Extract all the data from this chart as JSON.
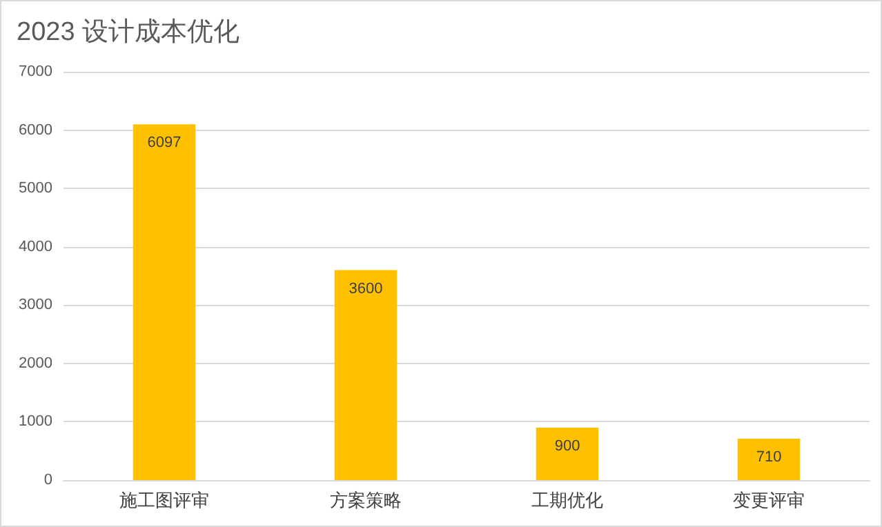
{
  "chart_data": {
    "type": "bar",
    "title": "2023 设计成本优化",
    "categories": [
      "施工图评审",
      "方案策略",
      "工期优化",
      "变更评审"
    ],
    "values": [
      6097,
      3600,
      900,
      710
    ],
    "color": "#ffc000",
    "ylim": [
      0,
      7000
    ],
    "yticks": [
      0,
      1000,
      2000,
      3000,
      4000,
      5000,
      6000,
      7000
    ],
    "grid": "y",
    "data_labels": true
  }
}
